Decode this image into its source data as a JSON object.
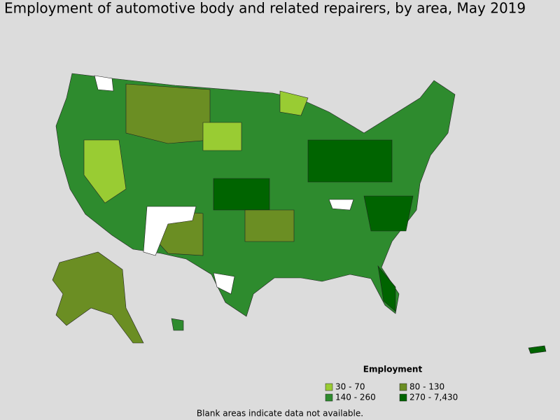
{
  "header": {
    "title": "Employment of automotive body and related repairers, by area, May 2019"
  },
  "legend": {
    "title": "Employment",
    "items": [
      {
        "label": "30 - 70",
        "color": "#99cc33"
      },
      {
        "label": "80 - 130",
        "color": "#6b8e23"
      },
      {
        "label": "140 - 260",
        "color": "#2e8b2e"
      },
      {
        "label": "270 - 7,430",
        "color": "#006400"
      }
    ]
  },
  "footnote": "Blank areas indicate data not available."
}
